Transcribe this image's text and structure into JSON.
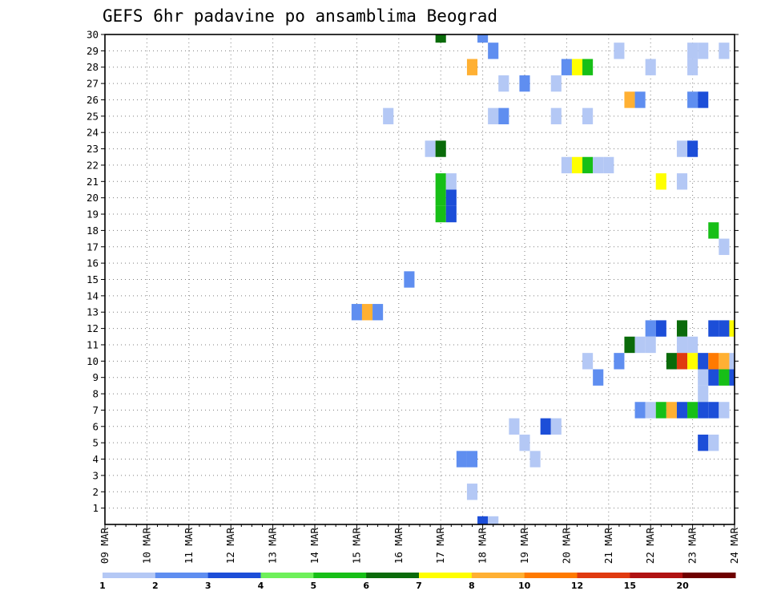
{
  "chart_data": {
    "type": "heatmap",
    "title": "GEFS 6hr padavine po ansamblima Beograd",
    "xlabel": "",
    "ylabel": "",
    "x_ticks": [
      "09 MAR",
      "10 MAR",
      "11 MAR",
      "12 MAR",
      "13 MAR",
      "14 MAR",
      "15 MAR",
      "16 MAR",
      "17 MAR",
      "18 MAR",
      "19 MAR",
      "20 MAR",
      "21 MAR",
      "22 MAR",
      "23 MAR",
      "24 MAR"
    ],
    "x_range_steps": [
      0,
      60
    ],
    "x_step_hours": 6,
    "y_ticks": [
      1,
      2,
      3,
      4,
      5,
      6,
      7,
      8,
      9,
      10,
      11,
      12,
      13,
      14,
      15,
      16,
      17,
      18,
      19,
      20,
      21,
      22,
      23,
      24,
      25,
      26,
      27,
      28,
      29,
      30
    ],
    "y_range": [
      0,
      30
    ],
    "grid": true,
    "colorbar": {
      "position": "bottom",
      "labels": [
        "1",
        "2",
        "3",
        "4",
        "5",
        "6",
        "7",
        "8",
        "10",
        "12",
        "15",
        "20"
      ],
      "colors": [
        "#b4c8f5",
        "#5f8ef0",
        "#1c4ed8",
        "#6ef05a",
        "#17bf17",
        "#0a6b0a",
        "#ffff00",
        "#ffb033",
        "#ff7a00",
        "#e03a10",
        "#b01212",
        "#6e0000"
      ]
    },
    "cells": [
      {
        "m": 30,
        "t": 32,
        "v": 6
      },
      {
        "m": 30,
        "t": 36,
        "v": 2
      },
      {
        "m": 29,
        "t": 37,
        "v": 2
      },
      {
        "m": 29,
        "t": 49,
        "v": 1
      },
      {
        "m": 29,
        "t": 56,
        "v": 1
      },
      {
        "m": 29,
        "t": 57,
        "v": 1
      },
      {
        "m": 29,
        "t": 59,
        "v": 1
      },
      {
        "m": 28,
        "t": 35,
        "v": 8
      },
      {
        "m": 28,
        "t": 44,
        "v": 2
      },
      {
        "m": 28,
        "t": 45,
        "v": 7
      },
      {
        "m": 28,
        "t": 46,
        "v": 5
      },
      {
        "m": 28,
        "t": 52,
        "v": 1
      },
      {
        "m": 28,
        "t": 56,
        "v": 1
      },
      {
        "m": 27,
        "t": 38,
        "v": 1
      },
      {
        "m": 27,
        "t": 40,
        "v": 2
      },
      {
        "m": 27,
        "t": 43,
        "v": 1
      },
      {
        "m": 26,
        "t": 50,
        "v": 8
      },
      {
        "m": 26,
        "t": 51,
        "v": 2
      },
      {
        "m": 26,
        "t": 56,
        "v": 2
      },
      {
        "m": 26,
        "t": 57,
        "v": 3
      },
      {
        "m": 25,
        "t": 27,
        "v": 1
      },
      {
        "m": 25,
        "t": 37,
        "v": 1
      },
      {
        "m": 25,
        "t": 38,
        "v": 2
      },
      {
        "m": 25,
        "t": 43,
        "v": 1
      },
      {
        "m": 25,
        "t": 46,
        "v": 1
      },
      {
        "m": 23,
        "t": 31,
        "v": 1
      },
      {
        "m": 23,
        "t": 32,
        "v": 6
      },
      {
        "m": 23,
        "t": 55,
        "v": 1
      },
      {
        "m": 23,
        "t": 56,
        "v": 3
      },
      {
        "m": 22,
        "t": 44,
        "v": 1
      },
      {
        "m": 22,
        "t": 45,
        "v": 7
      },
      {
        "m": 22,
        "t": 46,
        "v": 5
      },
      {
        "m": 22,
        "t": 47,
        "v": 1
      },
      {
        "m": 22,
        "t": 48,
        "v": 1
      },
      {
        "m": 21,
        "t": 32,
        "v": 5
      },
      {
        "m": 21,
        "t": 33,
        "v": 1
      },
      {
        "m": 21,
        "t": 53,
        "v": 7
      },
      {
        "m": 21,
        "t": 55,
        "v": 1
      },
      {
        "m": 20,
        "t": 32,
        "v": 5
      },
      {
        "m": 20,
        "t": 33,
        "v": 3
      },
      {
        "m": 19,
        "t": 32,
        "v": 5
      },
      {
        "m": 19,
        "t": 33,
        "v": 3
      },
      {
        "m": 18,
        "t": 58,
        "v": 5
      },
      {
        "m": 17,
        "t": 59,
        "v": 1
      },
      {
        "m": 15,
        "t": 29,
        "v": 2
      },
      {
        "m": 13,
        "t": 24,
        "v": 2
      },
      {
        "m": 13,
        "t": 25,
        "v": 8
      },
      {
        "m": 13,
        "t": 26,
        "v": 2
      },
      {
        "m": 12,
        "t": 52,
        "v": 2
      },
      {
        "m": 12,
        "t": 53,
        "v": 3
      },
      {
        "m": 12,
        "t": 55,
        "v": 6
      },
      {
        "m": 12,
        "t": 58,
        "v": 3
      },
      {
        "m": 12,
        "t": 59,
        "v": 3
      },
      {
        "m": 12,
        "t": 60,
        "v": 7
      },
      {
        "m": 11,
        "t": 50,
        "v": 6
      },
      {
        "m": 11,
        "t": 51,
        "v": 1
      },
      {
        "m": 11,
        "t": 52,
        "v": 1
      },
      {
        "m": 11,
        "t": 55,
        "v": 1
      },
      {
        "m": 11,
        "t": 56,
        "v": 1
      },
      {
        "m": 10,
        "t": 46,
        "v": 1
      },
      {
        "m": 10,
        "t": 49,
        "v": 2
      },
      {
        "m": 10,
        "t": 54,
        "v": 6
      },
      {
        "m": 10,
        "t": 55,
        "v": 12
      },
      {
        "m": 10,
        "t": 56,
        "v": 7
      },
      {
        "m": 10,
        "t": 57,
        "v": 3
      },
      {
        "m": 10,
        "t": 58,
        "v": 10
      },
      {
        "m": 10,
        "t": 59,
        "v": 8
      },
      {
        "m": 10,
        "t": 60,
        "v": 1
      },
      {
        "m": 9,
        "t": 47,
        "v": 2
      },
      {
        "m": 9,
        "t": 57,
        "v": 1
      },
      {
        "m": 9,
        "t": 58,
        "v": 3
      },
      {
        "m": 9,
        "t": 59,
        "v": 5
      },
      {
        "m": 9,
        "t": 60,
        "v": 3
      },
      {
        "m": 8,
        "t": 57,
        "v": 1
      },
      {
        "m": 7,
        "t": 51,
        "v": 2
      },
      {
        "m": 7,
        "t": 52,
        "v": 1
      },
      {
        "m": 7,
        "t": 53,
        "v": 5
      },
      {
        "m": 7,
        "t": 54,
        "v": 8
      },
      {
        "m": 7,
        "t": 55,
        "v": 3
      },
      {
        "m": 7,
        "t": 56,
        "v": 5
      },
      {
        "m": 7,
        "t": 57,
        "v": 3
      },
      {
        "m": 7,
        "t": 58,
        "v": 3
      },
      {
        "m": 7,
        "t": 59,
        "v": 1
      },
      {
        "m": 6,
        "t": 39,
        "v": 1
      },
      {
        "m": 6,
        "t": 42,
        "v": 3
      },
      {
        "m": 6,
        "t": 43,
        "v": 1
      },
      {
        "m": 5,
        "t": 40,
        "v": 1
      },
      {
        "m": 5,
        "t": 57,
        "v": 3
      },
      {
        "m": 5,
        "t": 58,
        "v": 1
      },
      {
        "m": 4,
        "t": 34,
        "v": 2
      },
      {
        "m": 4,
        "t": 35,
        "v": 2
      },
      {
        "m": 4,
        "t": 41,
        "v": 1
      },
      {
        "m": 2,
        "t": 35,
        "v": 1
      },
      {
        "m": 0,
        "t": 36,
        "v": 3
      },
      {
        "m": 0,
        "t": 37,
        "v": 1
      }
    ]
  }
}
